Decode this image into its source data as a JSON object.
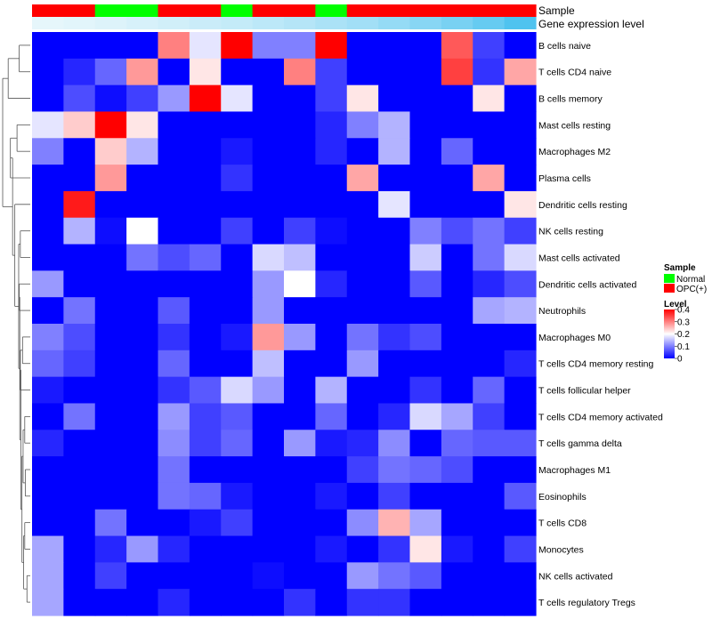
{
  "chart_data": {
    "type": "heatmap",
    "annotation_rows": [
      {
        "name": "Sample",
        "values": [
          "OPC(+)",
          "OPC(+)",
          "Normal",
          "Normal",
          "OPC(+)",
          "OPC(+)",
          "Normal",
          "OPC(+)",
          "OPC(+)",
          "Normal",
          "OPC(+)",
          "OPC(+)",
          "OPC(+)",
          "OPC(+)",
          "OPC(+)",
          "OPC(+)"
        ]
      },
      {
        "name": "Gene expression level",
        "values": [
          0.02,
          0.04,
          0.07,
          0.1,
          0.13,
          0.17,
          0.2,
          0.24,
          0.28,
          0.33,
          0.38,
          0.45,
          0.52,
          0.6,
          0.7,
          0.82
        ]
      }
    ],
    "rows": [
      "B cells naive",
      "T cells CD4 naive",
      "B cells memory",
      "Mast cells resting",
      "Macrophages M2",
      "Plasma cells",
      "Dendritic cells resting",
      "NK cells resting",
      "Mast cells activated",
      "Dendritic cells activated",
      "Neutrophils",
      "Macrophages M0",
      "T cells CD4 memory resting",
      "T cells follicular helper",
      "T cells CD4 memory activated",
      "T cells gamma delta",
      "Macrophages M1",
      "Eosinophils",
      "T cells CD8",
      "Monocytes",
      "NK cells activated",
      "T cells regulatory  Tregs"
    ],
    "values": [
      [
        0,
        0,
        0,
        0,
        0.3,
        0.18,
        0.4,
        0.1,
        0.1,
        0.4,
        0,
        0,
        0,
        0.33,
        0.05,
        0
      ],
      [
        0,
        0.03,
        0.08,
        0.28,
        0,
        0.22,
        0,
        0,
        0.3,
        0.05,
        0,
        0,
        0,
        0.35,
        0.04,
        0.27
      ],
      [
        0,
        0.06,
        0.01,
        0.05,
        0.12,
        0.4,
        0.18,
        0,
        0,
        0.05,
        0.22,
        0,
        0,
        0,
        0.22,
        0
      ],
      [
        0.18,
        0.24,
        0.4,
        0.22,
        0,
        0,
        0,
        0,
        0,
        0.03,
        0.1,
        0.14,
        0,
        0,
        0,
        0
      ],
      [
        0.1,
        0,
        0.24,
        0.14,
        0,
        0,
        0.02,
        0,
        0,
        0.03,
        0,
        0.14,
        0,
        0.08,
        0,
        0
      ],
      [
        0,
        0,
        0.28,
        0,
        0,
        0,
        0.04,
        0,
        0,
        0,
        0.27,
        0,
        0,
        0,
        0.27,
        0
      ],
      [
        0,
        0.38,
        0,
        0,
        0,
        0,
        0,
        0,
        0,
        0,
        0,
        0.18,
        0,
        0,
        0,
        0.22
      ],
      [
        0,
        0.14,
        0.01,
        0.2,
        0,
        0,
        0.05,
        0,
        0.05,
        0.01,
        0,
        0,
        0.1,
        0.06,
        0.09,
        0.05
      ],
      [
        0,
        0,
        0,
        0.09,
        0.06,
        0.08,
        0,
        0.17,
        0.15,
        0,
        0,
        0,
        0.16,
        0,
        0.09,
        0.17
      ],
      [
        0.12,
        0,
        0,
        0,
        0,
        0,
        0,
        0.12,
        0.2,
        0.03,
        0,
        0,
        0.07,
        0,
        0.03,
        0.06
      ],
      [
        0,
        0.09,
        0,
        0,
        0.07,
        0,
        0,
        0.12,
        0,
        0,
        0,
        0,
        0,
        0,
        0.13,
        0.14
      ],
      [
        0.1,
        0.06,
        0,
        0,
        0.04,
        0,
        0.02,
        0.28,
        0.12,
        0,
        0.09,
        0.04,
        0.06,
        0,
        0,
        0
      ],
      [
        0.08,
        0.05,
        0,
        0,
        0.08,
        0,
        0,
        0.15,
        0,
        0,
        0.12,
        0,
        0,
        0,
        0,
        0.03
      ],
      [
        0.02,
        0,
        0,
        0,
        0.04,
        0.07,
        0.17,
        0.12,
        0,
        0.14,
        0,
        0,
        0.04,
        0,
        0.08,
        0
      ],
      [
        0,
        0.09,
        0,
        0,
        0.12,
        0.05,
        0.07,
        0,
        0,
        0.08,
        0,
        0.03,
        0.17,
        0.13,
        0.05,
        0
      ],
      [
        0.03,
        0,
        0,
        0,
        0.11,
        0.05,
        0.08,
        0,
        0.12,
        0.02,
        0.03,
        0.11,
        0,
        0.08,
        0.07,
        0.07
      ],
      [
        0,
        0,
        0,
        0,
        0.09,
        0,
        0,
        0,
        0,
        0,
        0.05,
        0.09,
        0.08,
        0.06,
        0,
        0
      ],
      [
        0,
        0,
        0,
        0,
        0.09,
        0.08,
        0.02,
        0,
        0,
        0.02,
        0,
        0.05,
        0,
        0,
        0,
        0.07
      ],
      [
        0,
        0,
        0.09,
        0,
        0,
        0.02,
        0.05,
        0,
        0,
        0,
        0.11,
        0.26,
        0.13,
        0,
        0,
        0
      ],
      [
        0.13,
        0,
        0.03,
        0.12,
        0.03,
        0,
        0,
        0,
        0,
        0.02,
        0,
        0.04,
        0.22,
        0.02,
        0,
        0.05
      ],
      [
        0.13,
        0,
        0.05,
        0,
        0,
        0,
        0,
        0.01,
        0,
        0,
        0.12,
        0.09,
        0.07,
        0,
        0,
        0
      ],
      [
        0.13,
        0,
        0,
        0,
        0.03,
        0,
        0,
        0,
        0.04,
        0,
        0.04,
        0.04,
        0,
        0,
        0,
        0
      ]
    ],
    "colormap": {
      "low": "#0000ff",
      "mid": "#ffffff",
      "high": "#ff0000",
      "domain": [
        0,
        0.4
      ]
    },
    "annotation_colors": {
      "Normal": "#00ff00",
      "OPC(+)": "#ff0000",
      "expr_low": "#e6f6fb",
      "expr_high": "#4fc3ef"
    },
    "legend": {
      "placement": "right",
      "sample_title": "Sample",
      "sample_entries": [
        "Normal",
        "OPC(+)"
      ],
      "level_title": "Level",
      "level_ticks": [
        "0.4",
        "0.3",
        "0.2",
        "0.1",
        "0"
      ]
    },
    "dendrogram": "rows"
  }
}
